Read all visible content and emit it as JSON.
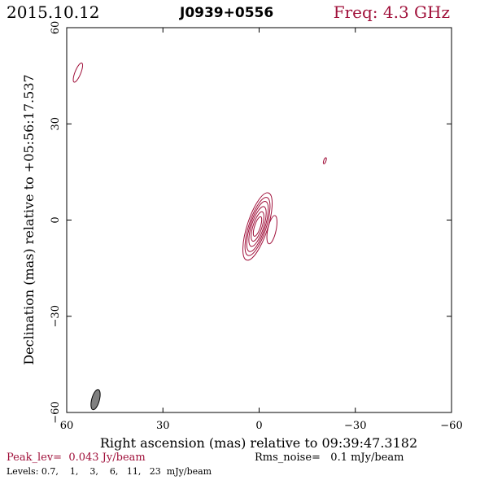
{
  "header": {
    "date": "2015.10.12",
    "source": "J0939+0556",
    "freq": "Freq: 4.3 GHz"
  },
  "colors": {
    "contour": "#a0103a",
    "axis": "#000000",
    "beam_fill": "#808080"
  },
  "chart_data": {
    "type": "contour",
    "xlabel": "Right ascension (mas) relative to 09:39:47.3182",
    "ylabel": "Declination (mas) relative to +05:56:17.537",
    "xlim": [
      60,
      -60
    ],
    "ylim": [
      -60,
      60
    ],
    "x_ticks": [
      60,
      30,
      0,
      -30,
      -60
    ],
    "y_ticks": [
      -60,
      -30,
      0,
      30,
      60
    ],
    "x_tick_labels": [
      "60",
      "30",
      "0",
      "−30",
      "−60"
    ],
    "y_tick_labels": [
      "−60",
      "−30",
      "0",
      "30",
      "60"
    ],
    "contour_levels_mJy": [
      0.7,
      1,
      3,
      6,
      11,
      23
    ],
    "components": [
      {
        "x": 0.5,
        "y": -2.0,
        "contours": [
          {
            "a": 11.0,
            "b": 3.2,
            "pa": 18
          },
          {
            "a": 9.5,
            "b": 2.7,
            "pa": 18
          },
          {
            "a": 8.2,
            "b": 2.3,
            "pa": 18
          },
          {
            "a": 6.5,
            "b": 1.9,
            "pa": 18
          },
          {
            "a": 4.8,
            "b": 1.4,
            "pa": 18
          },
          {
            "a": 3.2,
            "b": 0.9,
            "pa": 18
          }
        ]
      },
      {
        "x": -4.0,
        "y": -3.0,
        "contours": [
          {
            "a": 4.5,
            "b": 1.3,
            "pa": 12
          }
        ]
      },
      {
        "x": 56.5,
        "y": 46.0,
        "contours": [
          {
            "a": 3.2,
            "b": 0.9,
            "pa": 22
          }
        ]
      },
      {
        "x": -20.5,
        "y": 18.5,
        "contours": [
          {
            "a": 1.0,
            "b": 0.35,
            "pa": 20
          }
        ]
      }
    ],
    "beam": {
      "x": 51.0,
      "y": -56.0,
      "major_mas": 6.5,
      "minor_mas": 2.4,
      "pa": 15
    }
  },
  "footer": {
    "peak": "Peak_lev=  0.043 Jy/beam",
    "rms": "Rms_noise=   0.1 mJy/beam",
    "levels": "Levels: 0.7,    1,    3,    6,   11,   23  mJy/beam"
  }
}
